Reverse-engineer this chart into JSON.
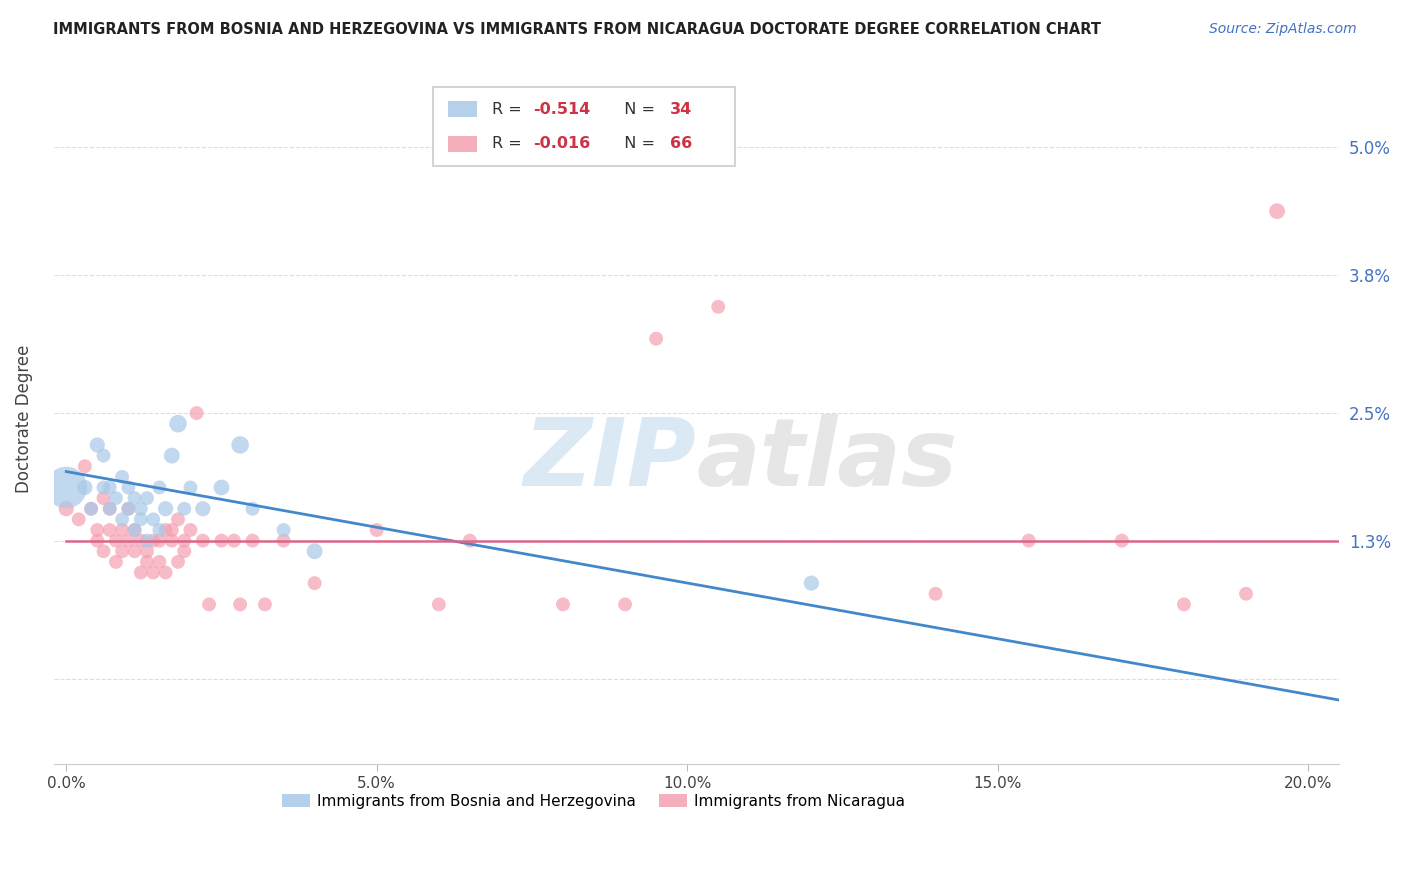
{
  "title": "IMMIGRANTS FROM BOSNIA AND HERZEGOVINA VS IMMIGRANTS FROM NICARAGUA DOCTORATE DEGREE CORRELATION CHART",
  "source": "Source: ZipAtlas.com",
  "ylabel": "Doctorate Degree",
  "yticks": [
    0.0,
    0.013,
    0.025,
    0.038,
    0.05
  ],
  "ytick_labels": [
    "",
    "1.3%",
    "2.5%",
    "3.8%",
    "5.0%"
  ],
  "xticks": [
    0.0,
    0.05,
    0.1,
    0.15,
    0.2
  ],
  "xtick_labels": [
    "0.0%",
    "5.0%",
    "10.0%",
    "15.0%",
    "20.0%"
  ],
  "xmin": -0.002,
  "xmax": 0.205,
  "ymin": -0.008,
  "ymax": 0.057,
  "watermark_zip": "ZIP",
  "watermark_atlas": "atlas",
  "legend_blue_r": "-0.514",
  "legend_blue_n": "34",
  "legend_pink_r": "-0.016",
  "legend_pink_n": "66",
  "blue_color": "#a8c8e8",
  "pink_color": "#f4a0b0",
  "blue_line_color": "#4488cc",
  "pink_line_color": "#dd6688",
  "blue_scatter_x": [
    0.0,
    0.003,
    0.004,
    0.005,
    0.006,
    0.006,
    0.007,
    0.007,
    0.008,
    0.009,
    0.009,
    0.01,
    0.01,
    0.011,
    0.011,
    0.012,
    0.012,
    0.013,
    0.013,
    0.014,
    0.015,
    0.015,
    0.016,
    0.017,
    0.018,
    0.019,
    0.02,
    0.022,
    0.025,
    0.028,
    0.03,
    0.035,
    0.04,
    0.12
  ],
  "blue_scatter_y": [
    0.018,
    0.018,
    0.016,
    0.022,
    0.018,
    0.021,
    0.018,
    0.016,
    0.017,
    0.019,
    0.015,
    0.018,
    0.016,
    0.017,
    0.014,
    0.016,
    0.015,
    0.017,
    0.013,
    0.015,
    0.018,
    0.014,
    0.016,
    0.021,
    0.024,
    0.016,
    0.018,
    0.016,
    0.018,
    0.022,
    0.016,
    0.014,
    0.012,
    0.009
  ],
  "blue_scatter_size": [
    900,
    120,
    100,
    120,
    100,
    100,
    100,
    100,
    100,
    100,
    100,
    100,
    100,
    100,
    100,
    100,
    100,
    100,
    100,
    100,
    100,
    100,
    120,
    130,
    160,
    100,
    100,
    120,
    130,
    160,
    100,
    100,
    130,
    120
  ],
  "pink_scatter_x": [
    0.0,
    0.002,
    0.003,
    0.004,
    0.005,
    0.005,
    0.006,
    0.006,
    0.007,
    0.007,
    0.008,
    0.008,
    0.009,
    0.009,
    0.01,
    0.01,
    0.011,
    0.011,
    0.012,
    0.012,
    0.013,
    0.013,
    0.014,
    0.014,
    0.015,
    0.015,
    0.016,
    0.016,
    0.017,
    0.017,
    0.018,
    0.018,
    0.019,
    0.019,
    0.02,
    0.021,
    0.022,
    0.023,
    0.025,
    0.027,
    0.028,
    0.03,
    0.032,
    0.035,
    0.04,
    0.05,
    0.06,
    0.065,
    0.08,
    0.09,
    0.095,
    0.105,
    0.14,
    0.155,
    0.17,
    0.18,
    0.19,
    0.195
  ],
  "pink_scatter_y": [
    0.016,
    0.015,
    0.02,
    0.016,
    0.013,
    0.014,
    0.017,
    0.012,
    0.016,
    0.014,
    0.013,
    0.011,
    0.014,
    0.012,
    0.016,
    0.013,
    0.014,
    0.012,
    0.013,
    0.01,
    0.012,
    0.011,
    0.013,
    0.01,
    0.013,
    0.011,
    0.014,
    0.01,
    0.014,
    0.013,
    0.015,
    0.011,
    0.013,
    0.012,
    0.014,
    0.025,
    0.013,
    0.007,
    0.013,
    0.013,
    0.007,
    0.013,
    0.007,
    0.013,
    0.009,
    0.014,
    0.007,
    0.013,
    0.007,
    0.007,
    0.032,
    0.035,
    0.008,
    0.013,
    0.013,
    0.007,
    0.008,
    0.044
  ],
  "pink_scatter_size": [
    120,
    100,
    100,
    100,
    100,
    100,
    100,
    100,
    100,
    100,
    100,
    100,
    100,
    100,
    100,
    100,
    100,
    100,
    100,
    100,
    100,
    100,
    100,
    100,
    100,
    100,
    100,
    100,
    100,
    100,
    100,
    100,
    100,
    100,
    100,
    100,
    100,
    100,
    100,
    100,
    100,
    100,
    100,
    100,
    100,
    100,
    100,
    100,
    100,
    100,
    100,
    100,
    100,
    100,
    100,
    100,
    100,
    130
  ],
  "blue_trend_x": [
    0.0,
    0.205
  ],
  "blue_trend_y": [
    0.0195,
    -0.002
  ],
  "pink_trend_x": [
    0.0,
    0.205
  ],
  "pink_trend_y": [
    0.013,
    0.013
  ],
  "grid_color": "#dddddd",
  "bg_color": "#ffffff",
  "title_color": "#222222",
  "source_color": "#4472c4",
  "ylabel_color": "#444444",
  "ytick_color": "#4472c4",
  "xtick_color": "#444444"
}
